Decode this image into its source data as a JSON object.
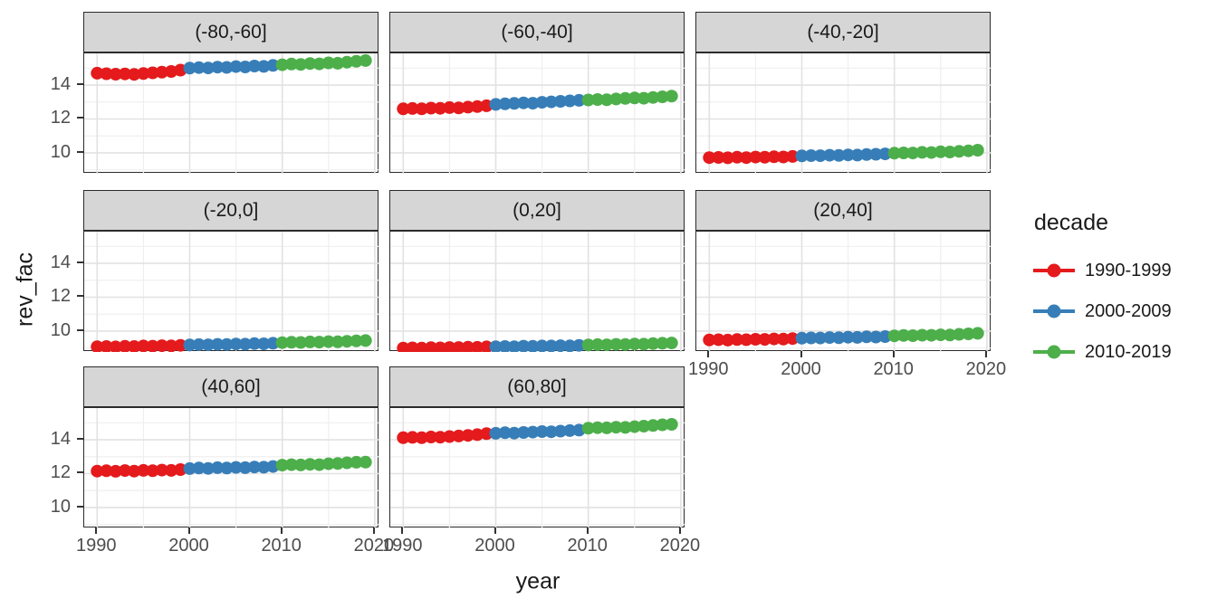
{
  "legend": {
    "title": "decade",
    "entries": [
      {
        "label": "1990-1999",
        "color": "#E41A1C"
      },
      {
        "label": "2000-2009",
        "color": "#377EB8"
      },
      {
        "label": "2010-2019",
        "color": "#4DAF4A"
      }
    ]
  },
  "colors": {
    "strip_background": "#D6D6D6",
    "panel_border": "#2B2B2B",
    "grid_major": "#E2E2E2",
    "grid_minor": "#EFEFEF",
    "tick_text": "#4D4D4D",
    "title_text": "#1A1A1A"
  },
  "chart_data": {
    "type": "scatter",
    "xlabel": "year",
    "ylabel": "rev_fac",
    "grid": true,
    "legend_position": "right",
    "x": [
      1990,
      1991,
      1992,
      1993,
      1994,
      1995,
      1996,
      1997,
      1998,
      1999,
      2000,
      2001,
      2002,
      2003,
      2004,
      2005,
      2006,
      2007,
      2008,
      2009,
      2010,
      2011,
      2012,
      2013,
      2014,
      2015,
      2016,
      2017,
      2018,
      2019
    ],
    "x_ticks": [
      "1990",
      "2000",
      "2010",
      "2020"
    ],
    "y_ticks": [
      "14",
      "12",
      "10"
    ],
    "x_tick_values": [
      1990,
      2000,
      2010,
      2020
    ],
    "y_tick_values": [
      14,
      12,
      10
    ],
    "x_minor_ticks": [
      1995,
      2005,
      2015
    ],
    "y_minor_ticks": [
      9,
      11,
      13,
      15
    ],
    "x_domain": [
      1988.6,
      2020.5
    ],
    "y_domain": [
      8.77,
      15.87
    ],
    "series": [
      {
        "name": "1990-1999",
        "color": "#E41A1C",
        "year_range": [
          1990,
          1999
        ]
      },
      {
        "name": "2000-2009",
        "color": "#377EB8",
        "year_range": [
          2000,
          2009
        ]
      },
      {
        "name": "2010-2019",
        "color": "#4DAF4A",
        "year_range": [
          2010,
          2019
        ]
      }
    ],
    "facets": [
      {
        "label": "(-80,-60]",
        "values": [
          14.7,
          14.67,
          14.64,
          14.66,
          14.63,
          14.68,
          14.72,
          14.76,
          14.8,
          14.88,
          15.0,
          15.03,
          15.01,
          15.06,
          15.04,
          15.09,
          15.07,
          15.12,
          15.1,
          15.16,
          15.2,
          15.24,
          15.22,
          15.27,
          15.25,
          15.31,
          15.29,
          15.35,
          15.4,
          15.45
        ]
      },
      {
        "label": "(-60,-40]",
        "values": [
          12.6,
          12.62,
          12.6,
          12.64,
          12.63,
          12.67,
          12.65,
          12.7,
          12.73,
          12.78,
          12.86,
          12.89,
          12.92,
          12.95,
          12.93,
          12.98,
          13.01,
          13.04,
          13.07,
          13.1,
          13.12,
          13.15,
          13.13,
          13.18,
          13.21,
          13.24,
          13.22,
          13.27,
          13.31,
          13.35
        ]
      },
      {
        "label": "(-40,-20]",
        "values": [
          9.72,
          9.73,
          9.71,
          9.74,
          9.72,
          9.75,
          9.74,
          9.77,
          9.76,
          9.79,
          9.82,
          9.84,
          9.83,
          9.86,
          9.85,
          9.88,
          9.87,
          9.9,
          9.92,
          9.94,
          9.98,
          10.0,
          9.99,
          10.03,
          10.02,
          10.06,
          10.05,
          10.09,
          10.12,
          10.16
        ]
      },
      {
        "label": "(-20,0]",
        "values": [
          9.08,
          9.09,
          9.07,
          9.1,
          9.09,
          9.12,
          9.11,
          9.14,
          9.13,
          9.16,
          9.18,
          9.2,
          9.19,
          9.22,
          9.21,
          9.24,
          9.23,
          9.26,
          9.25,
          9.28,
          9.32,
          9.34,
          9.33,
          9.36,
          9.35,
          9.38,
          9.37,
          9.4,
          9.42,
          9.44
        ]
      },
      {
        "label": "(0,20]",
        "values": [
          9.0,
          9.01,
          9.0,
          9.02,
          9.01,
          9.03,
          9.03,
          9.05,
          9.04,
          9.07,
          9.08,
          9.09,
          9.08,
          9.11,
          9.1,
          9.12,
          9.12,
          9.14,
          9.13,
          9.16,
          9.18,
          9.2,
          9.19,
          9.22,
          9.21,
          9.24,
          9.23,
          9.26,
          9.28,
          9.3
        ]
      },
      {
        "label": "(20,40]",
        "values": [
          9.48,
          9.49,
          9.47,
          9.5,
          9.49,
          9.52,
          9.51,
          9.54,
          9.53,
          9.56,
          9.58,
          9.6,
          9.59,
          9.62,
          9.61,
          9.64,
          9.63,
          9.66,
          9.65,
          9.68,
          9.72,
          9.74,
          9.73,
          9.76,
          9.75,
          9.78,
          9.77,
          9.81,
          9.84,
          9.87
        ]
      },
      {
        "label": "(40,60]",
        "values": [
          12.15,
          12.17,
          12.14,
          12.18,
          12.15,
          12.19,
          12.17,
          12.21,
          12.19,
          12.24,
          12.3,
          12.33,
          12.31,
          12.35,
          12.33,
          12.37,
          12.35,
          12.39,
          12.38,
          12.42,
          12.5,
          12.53,
          12.51,
          12.55,
          12.53,
          12.58,
          12.6,
          12.64,
          12.67,
          12.68
        ]
      },
      {
        "label": "(60,80]",
        "values": [
          14.12,
          14.14,
          14.12,
          14.16,
          14.15,
          14.19,
          14.22,
          14.26,
          14.3,
          14.36,
          14.38,
          14.41,
          14.39,
          14.43,
          14.45,
          14.48,
          14.47,
          14.51,
          14.54,
          14.57,
          14.68,
          14.71,
          14.7,
          14.74,
          14.73,
          14.77,
          14.8,
          14.84,
          14.88,
          14.91
        ]
      }
    ]
  }
}
